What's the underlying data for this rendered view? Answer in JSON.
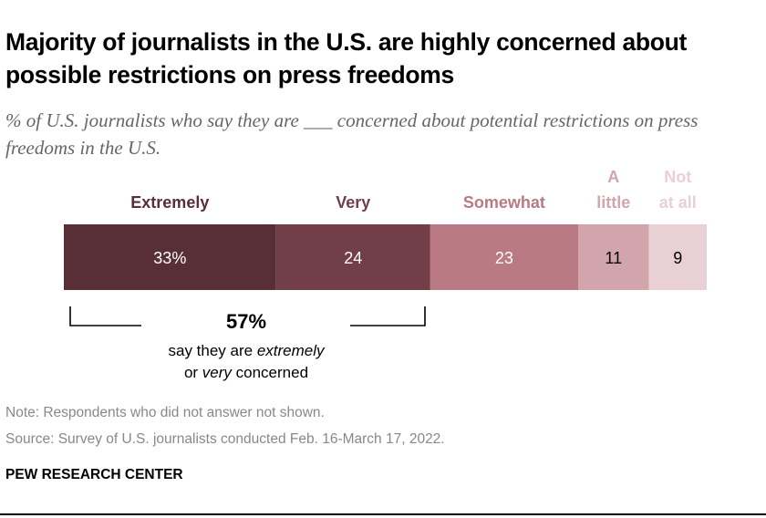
{
  "title": "Majority of journalists in the U.S. are highly concerned about possible restrictions on press freedoms",
  "subtitle": "% of U.S. journalists who say they are ___ concerned about potential restrictions on press freedoms in the U.S.",
  "chart_data": {
    "type": "bar",
    "orientation": "horizontal-stacked",
    "categories": [
      "Extremely",
      "Very",
      "Somewhat",
      "A little",
      "Not at all"
    ],
    "values": [
      33,
      24,
      23,
      11,
      9
    ],
    "data_labels": [
      "33%",
      "24",
      "23",
      "11",
      "9"
    ],
    "colors": [
      "#592f37",
      "#723e48",
      "#b97a84",
      "#d2a5ad",
      "#e9d0d5"
    ],
    "label_text_colors": [
      "#fff",
      "#fff",
      "#fff",
      "#000",
      "#000"
    ],
    "annotation": {
      "value": "57%",
      "line1": "say they are extremely",
      "line2": "or very concerned"
    }
  },
  "note": "Note: Respondents who did not answer not shown.",
  "source": "Source: Survey of U.S. journalists conducted Feb. 16-March 17, 2022.",
  "brand": "PEW RESEARCH CENTER"
}
